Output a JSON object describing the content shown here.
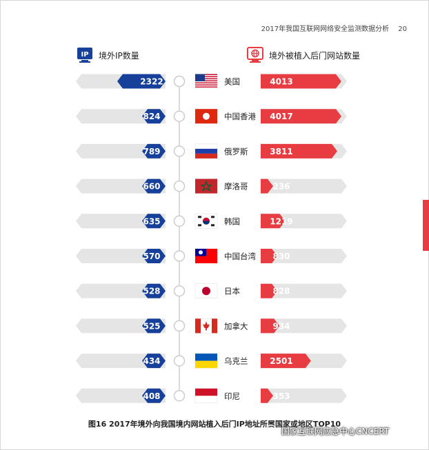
{
  "header": {
    "title": "2017年我国互联网网络安全监测数据分析",
    "page": "20"
  },
  "legend": {
    "left_label": "境外IP数量",
    "left_icon_text": "IP",
    "right_label": "境外被植入后门网站数量"
  },
  "colors": {
    "blue": "#16409a",
    "red": "#e63c42",
    "track": "#e5e5e5"
  },
  "chart_data": {
    "type": "bar",
    "categories": [
      "美国",
      "中国香港",
      "俄罗斯",
      "摩洛哥",
      "韩国",
      "中国台湾",
      "日本",
      "加拿大",
      "乌克兰",
      "印尼"
    ],
    "series": [
      {
        "name": "境外IP数量",
        "values": [
          2322,
          824,
          789,
          660,
          635,
          570,
          528,
          525,
          434,
          408
        ]
      },
      {
        "name": "境外被植入后门网站数量",
        "values": [
          4013,
          4017,
          3811,
          236,
          1219,
          830,
          828,
          934,
          2501,
          353
        ]
      }
    ],
    "flags": [
      "us",
      "hk",
      "ru",
      "ma",
      "kr",
      "tw",
      "jp",
      "ca",
      "ua",
      "id"
    ],
    "title": "图16 2017年境外向我国境内网站植入后门IP地址所属国家或地区TOP10"
  },
  "watermark": "国家互联网应急中心CNCERT"
}
